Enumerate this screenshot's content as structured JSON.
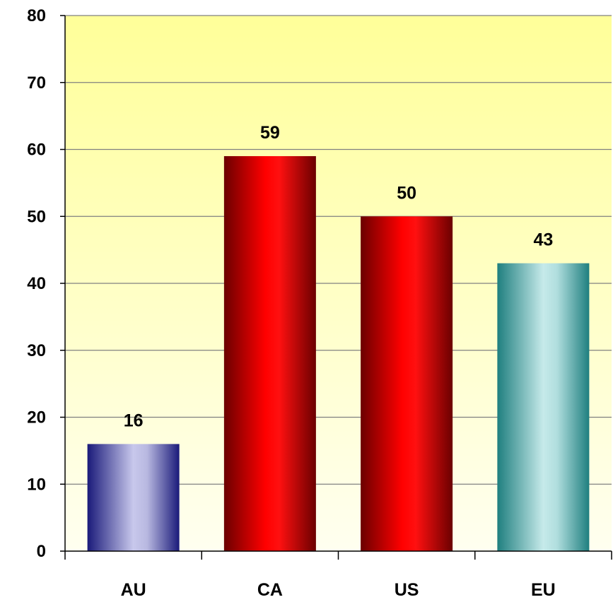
{
  "chart_data": {
    "type": "bar",
    "title": "",
    "xlabel": "",
    "ylabel": "",
    "categories": [
      "AU",
      "CA",
      "US",
      "EU"
    ],
    "values": [
      16,
      59,
      50,
      43
    ],
    "ylim": [
      0,
      80
    ],
    "yticks": [
      0,
      10,
      20,
      30,
      40,
      50,
      60,
      70,
      80
    ],
    "grid": true,
    "legend": "none",
    "colors": {
      "plot_background_top": "#ffff99",
      "plot_background_bottom": "#fffff0",
      "gridline": "#808080",
      "bars": [
        "#1a1a7a",
        "#cc0000",
        "#cc0000",
        "#2a8a8a"
      ]
    }
  }
}
